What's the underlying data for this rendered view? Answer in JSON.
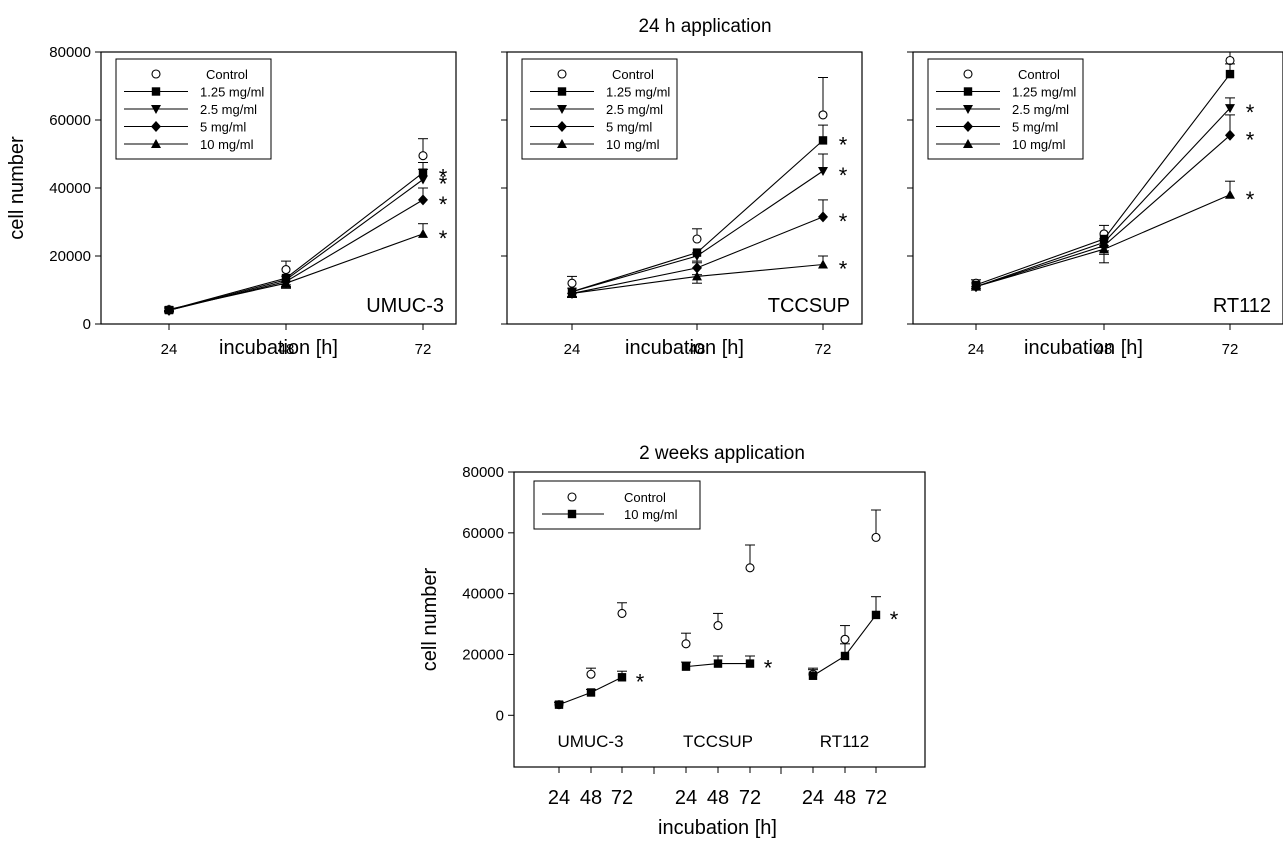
{
  "top_title": "24 h application",
  "bottom_title": "2 weeks application",
  "xlabel": "incubation [h]",
  "ylabel": "cell number",
  "chart_data": [
    {
      "type": "line",
      "panel": "UMUC-3",
      "title": "24 h application",
      "xlabel": "incubation [h]",
      "ylabel": "cell number",
      "categories": [
        "24",
        "48",
        "72"
      ],
      "ylim": [
        0,
        80000
      ],
      "yticks": [
        "0",
        "20000",
        "40000",
        "60000",
        "80000"
      ],
      "legend": {
        "position": "top-left",
        "entries": [
          "Control",
          "1.25 mg/ml",
          "2.5 mg/ml",
          "5 mg/ml",
          "10 mg/ml"
        ]
      },
      "series": [
        {
          "name": "Control",
          "marker": "open-circle",
          "connected": false,
          "values": [
            4200,
            16000,
            49500
          ],
          "errors": [
            500,
            2500,
            5000
          ],
          "significant": [
            false,
            false,
            false
          ]
        },
        {
          "name": "1.25 mg/ml",
          "marker": "square",
          "connected": true,
          "values": [
            4100,
            13500,
            44500
          ],
          "errors": [
            400,
            2000,
            3000
          ],
          "significant": [
            false,
            false,
            true
          ]
        },
        {
          "name": "2.5 mg/ml",
          "marker": "triangle-down",
          "connected": true,
          "values": [
            4000,
            13000,
            42500
          ],
          "errors": [
            400,
            2000,
            3000
          ],
          "significant": [
            false,
            false,
            true
          ]
        },
        {
          "name": "5 mg/ml",
          "marker": "diamond",
          "connected": true,
          "values": [
            4000,
            12500,
            36500
          ],
          "errors": [
            400,
            1800,
            3500
          ],
          "significant": [
            false,
            false,
            true
          ]
        },
        {
          "name": "10 mg/ml",
          "marker": "triangle-up",
          "connected": true,
          "values": [
            4300,
            12000,
            26500
          ],
          "errors": [
            400,
            1500,
            3000
          ],
          "significant": [
            false,
            false,
            true
          ]
        }
      ]
    },
    {
      "type": "line",
      "panel": "TCCSUP",
      "title": "24 h application",
      "xlabel": "incubation [h]",
      "ylabel": "cell number",
      "categories": [
        "24",
        "48",
        "72"
      ],
      "ylim": [
        0,
        80000
      ],
      "yticks": [
        "0",
        "20000",
        "40000",
        "60000",
        "80000"
      ],
      "legend": {
        "position": "top-left",
        "entries": [
          "Control",
          "1.25 mg/ml",
          "2.5 mg/ml",
          "5 mg/ml",
          "10 mg/ml"
        ]
      },
      "series": [
        {
          "name": "Control",
          "marker": "open-circle",
          "connected": false,
          "values": [
            12000,
            25000,
            61500
          ],
          "errors": [
            2000,
            3000,
            11000
          ],
          "significant": [
            false,
            false,
            false
          ]
        },
        {
          "name": "1.25 mg/ml",
          "marker": "square",
          "connected": true,
          "values": [
            9500,
            21000,
            54000
          ],
          "errors": [
            1500,
            2500,
            4500
          ],
          "significant": [
            false,
            false,
            true
          ]
        },
        {
          "name": "2.5 mg/ml",
          "marker": "triangle-down",
          "connected": true,
          "values": [
            9500,
            20000,
            45000
          ],
          "errors": [
            1500,
            2000,
            5000
          ],
          "significant": [
            false,
            false,
            true
          ]
        },
        {
          "name": "5 mg/ml",
          "marker": "diamond",
          "connected": true,
          "values": [
            9000,
            16500,
            31500
          ],
          "errors": [
            1200,
            2000,
            5000
          ],
          "significant": [
            false,
            false,
            true
          ]
        },
        {
          "name": "10 mg/ml",
          "marker": "triangle-up",
          "connected": true,
          "values": [
            9000,
            14000,
            17500
          ],
          "errors": [
            1200,
            2000,
            2500
          ],
          "significant": [
            false,
            false,
            true
          ]
        }
      ]
    },
    {
      "type": "line",
      "panel": "RT112",
      "title": "24 h application",
      "xlabel": "incubation [h]",
      "ylabel": "cell number",
      "categories": [
        "24",
        "48",
        "72"
      ],
      "ylim": [
        0,
        80000
      ],
      "yticks": [
        "0",
        "20000",
        "40000",
        "60000",
        "80000"
      ],
      "legend": {
        "position": "top-left",
        "entries": [
          "Control",
          "1.25 mg/ml",
          "2.5 mg/ml",
          "5 mg/ml",
          "10 mg/ml"
        ]
      },
      "series": [
        {
          "name": "Control",
          "marker": "open-circle",
          "connected": false,
          "values": [
            12000,
            26500,
            77500
          ],
          "errors": [
            1000,
            2500,
            2500
          ],
          "significant": [
            false,
            false,
            false
          ]
        },
        {
          "name": "1.25 mg/ml",
          "marker": "square",
          "connected": true,
          "values": [
            11500,
            25000,
            73500
          ],
          "errors": [
            1000,
            2500,
            3000
          ],
          "significant": [
            false,
            false,
            false
          ]
        },
        {
          "name": "2.5 mg/ml",
          "marker": "triangle-down",
          "connected": true,
          "values": [
            11000,
            24000,
            63500
          ],
          "errors": [
            1000,
            2500,
            3000
          ],
          "significant": [
            false,
            false,
            true
          ]
        },
        {
          "name": "5 mg/ml",
          "marker": "diamond",
          "connected": true,
          "values": [
            11000,
            23000,
            55500
          ],
          "errors": [
            1000,
            2500,
            6000
          ],
          "significant": [
            false,
            false,
            true
          ]
        },
        {
          "name": "10 mg/ml",
          "marker": "triangle-up",
          "connected": true,
          "values": [
            11000,
            22000,
            38000
          ],
          "errors": [
            1000,
            4000,
            4000
          ],
          "significant": [
            false,
            false,
            true
          ]
        }
      ]
    },
    {
      "type": "line",
      "panel": "2 weeks",
      "title": "2 weeks application",
      "xlabel": "incubation [h]",
      "ylabel": "cell number",
      "ylim": [
        -17000,
        80000
      ],
      "yticks": [
        "0",
        "20000",
        "40000",
        "60000",
        "80000"
      ],
      "legend": {
        "position": "top-left",
        "entries": [
          "Control",
          "10 mg/ml"
        ]
      },
      "groups": [
        {
          "label": "UMUC-3",
          "categories": [
            "24",
            "48",
            "72"
          ],
          "series": [
            {
              "name": "Control",
              "marker": "open-circle",
              "connected": false,
              "values": [
                3500,
                13500,
                33500
              ],
              "errors": [
                800,
                2000,
                3500
              ],
              "significant": [
                false,
                false,
                false
              ]
            },
            {
              "name": "10 mg/ml",
              "marker": "square",
              "connected": true,
              "values": [
                3500,
                7500,
                12500
              ],
              "errors": [
                800,
                1000,
                2000
              ],
              "significant": [
                false,
                false,
                true
              ]
            }
          ]
        },
        {
          "label": "TCCSUP",
          "categories": [
            "24",
            "48",
            "72"
          ],
          "series": [
            {
              "name": "Control",
              "marker": "open-circle",
              "connected": false,
              "values": [
                23500,
                29500,
                48500
              ],
              "errors": [
                3500,
                4000,
                7500
              ],
              "significant": [
                false,
                false,
                false
              ]
            },
            {
              "name": "10 mg/ml",
              "marker": "square",
              "connected": true,
              "values": [
                16000,
                17000,
                17000
              ],
              "errors": [
                1500,
                2500,
                2500
              ],
              "significant": [
                false,
                false,
                true
              ]
            }
          ]
        },
        {
          "label": "RT112",
          "categories": [
            "24",
            "48",
            "72"
          ],
          "series": [
            {
              "name": "Control",
              "marker": "open-circle",
              "connected": false,
              "values": [
                13500,
                25000,
                58500
              ],
              "errors": [
                2000,
                4500,
                9000
              ],
              "significant": [
                false,
                false,
                false
              ]
            },
            {
              "name": "10 mg/ml",
              "marker": "square",
              "connected": true,
              "values": [
                13000,
                19500,
                33000
              ],
              "errors": [
                2000,
                4000,
                6000
              ],
              "significant": [
                false,
                false,
                true
              ]
            }
          ]
        }
      ]
    }
  ]
}
